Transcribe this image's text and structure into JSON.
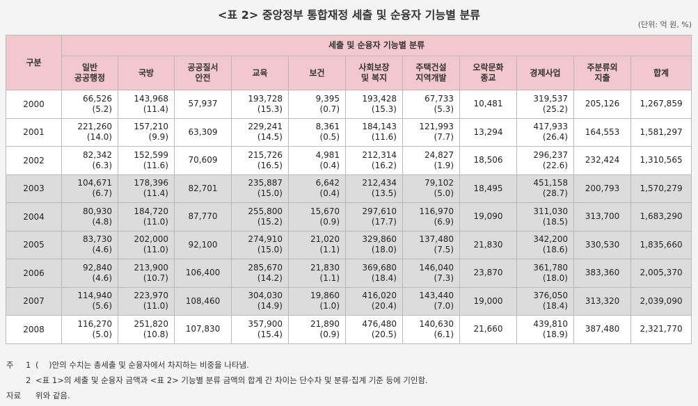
{
  "title": "<표 2> 중앙정부 통합재정 세출 및 순융자 기능별 분류",
  "unit": "(단위: 억 원, %)",
  "header": {
    "row_label": "구분",
    "group_label": "세출 및 순융자 기능별 분류",
    "columns": [
      [
        "일반",
        "공공행정"
      ],
      [
        "국방"
      ],
      [
        "공공질서",
        "안전"
      ],
      [
        "교육"
      ],
      [
        "보건"
      ],
      [
        "사회보장",
        "및 복지"
      ],
      [
        "주택건설",
        "지역개발"
      ],
      [
        "오락문화",
        "종교"
      ],
      [
        "경제사업"
      ],
      [
        "주분류외",
        "지출"
      ],
      [
        "합계"
      ]
    ]
  },
  "rows": [
    {
      "year": "2000",
      "shaded": false,
      "cells": [
        [
          "66,526",
          "(5.2)"
        ],
        [
          "143,968",
          "(11.4)"
        ],
        [
          "57,937"
        ],
        [
          "193,728",
          "(15.3)"
        ],
        [
          "9,395",
          "(0.7)"
        ],
        [
          "193,428",
          "(15.3)"
        ],
        [
          "67,733",
          "(5.3)"
        ],
        [
          "10,481"
        ],
        [
          "319,537",
          "(25.2)"
        ],
        [
          "205,126"
        ],
        [
          "1,267,859"
        ]
      ]
    },
    {
      "year": "2001",
      "shaded": false,
      "cells": [
        [
          "221,260",
          "(14.0)"
        ],
        [
          "157,210",
          "(9.9)"
        ],
        [
          "63,309"
        ],
        [
          "229,241",
          "(14.5)"
        ],
        [
          "8,361",
          "(0.5)"
        ],
        [
          "184,143",
          "(11.6)"
        ],
        [
          "121,993",
          "(7.7)"
        ],
        [
          "13,294"
        ],
        [
          "417,933",
          "(26.4)"
        ],
        [
          "164,553"
        ],
        [
          "1,581,297"
        ]
      ]
    },
    {
      "year": "2002",
      "shaded": false,
      "cells": [
        [
          "82,342",
          "(6.3)"
        ],
        [
          "152,599",
          "(11.6)"
        ],
        [
          "70,609"
        ],
        [
          "215,726",
          "(16.5)"
        ],
        [
          "4,981",
          "(0.4)"
        ],
        [
          "212,314",
          "(16.2)"
        ],
        [
          "24,827",
          "(1.9)"
        ],
        [
          "18,506"
        ],
        [
          "296,237",
          "(22.6)"
        ],
        [
          "232,424"
        ],
        [
          "1,310,565"
        ]
      ]
    },
    {
      "year": "2003",
      "shaded": true,
      "cells": [
        [
          "104,671",
          "(6.7)"
        ],
        [
          "178,396",
          "(11.4)"
        ],
        [
          "82,701"
        ],
        [
          "235,887",
          "(15.0)"
        ],
        [
          "6,642",
          "(0.4)"
        ],
        [
          "212,434",
          "(13.5)"
        ],
        [
          "79,102",
          "(5.0)"
        ],
        [
          "18,495"
        ],
        [
          "451,158",
          "(28.7)"
        ],
        [
          "200,793"
        ],
        [
          "1,570,279"
        ]
      ]
    },
    {
      "year": "2004",
      "shaded": true,
      "cells": [
        [
          "80,930",
          "(4.8)"
        ],
        [
          "184,720",
          "(11.0)"
        ],
        [
          "87,770"
        ],
        [
          "255,800",
          "(15.2)"
        ],
        [
          "15,670",
          "(0.9)"
        ],
        [
          "297,610",
          "(17.7)"
        ],
        [
          "116,970",
          "(6.9)"
        ],
        [
          "19,090"
        ],
        [
          "311,030",
          "(18.5)"
        ],
        [
          "313,700"
        ],
        [
          "1,683,290"
        ]
      ]
    },
    {
      "year": "2005",
      "shaded": true,
      "cells": [
        [
          "83,730",
          "(4.6)"
        ],
        [
          "202,000",
          "(11.0)"
        ],
        [
          "92,100"
        ],
        [
          "274,910",
          "(15.0)"
        ],
        [
          "21,020",
          "(1.1)"
        ],
        [
          "329,860",
          "(18.0)"
        ],
        [
          "137,480",
          "(7.5)"
        ],
        [
          "21,830"
        ],
        [
          "342,200",
          "(18.6)"
        ],
        [
          "330,530"
        ],
        [
          "1,835,660"
        ]
      ]
    },
    {
      "year": "2006",
      "shaded": true,
      "cells": [
        [
          "92,840",
          "(4.6)"
        ],
        [
          "213,900",
          "(10.7)"
        ],
        [
          "106,400"
        ],
        [
          "285,670",
          "(14.2)"
        ],
        [
          "21,830",
          "(1.1)"
        ],
        [
          "369,680",
          "(18.4)"
        ],
        [
          "146,040",
          "(7.3)"
        ],
        [
          "23,870"
        ],
        [
          "361,780",
          "(18.0)"
        ],
        [
          "383,360"
        ],
        [
          "2,005,370"
        ]
      ]
    },
    {
      "year": "2007",
      "shaded": true,
      "cells": [
        [
          "114,940",
          "(5.6)"
        ],
        [
          "223,970",
          "(11.0)"
        ],
        [
          "108,460"
        ],
        [
          "304,030",
          "(14.9)"
        ],
        [
          "19,860",
          "(1.0)"
        ],
        [
          "416,020",
          "(20.4)"
        ],
        [
          "143,440",
          "(7.0)"
        ],
        [
          "19,000"
        ],
        [
          "376,050",
          "(18.4)"
        ],
        [
          "313,320"
        ],
        [
          "2,039,090"
        ]
      ]
    },
    {
      "year": "2008",
      "shaded": false,
      "cells": [
        [
          "116,270",
          "(5.0)"
        ],
        [
          "251,820",
          "(10.8)"
        ],
        [
          "107,830"
        ],
        [
          "357,900",
          "(15.4)"
        ],
        [
          "21,890",
          "(0.9)"
        ],
        [
          "476,480",
          "(20.5)"
        ],
        [
          "140,630",
          "(6.1)"
        ],
        [
          "21,660"
        ],
        [
          "439,810",
          "(18.9)"
        ],
        [
          "387,480"
        ],
        [
          "2,321,770"
        ]
      ]
    }
  ],
  "notes": [
    {
      "label": "주",
      "num": "1",
      "text": "(    )안의 수치는 총세출 및 순융자에서 차지하는 비중을 나타냄."
    },
    {
      "label": "",
      "num": "2",
      "text": "<표 1>의 세출 및 순융자 금액과 <표 2> 기능별 분류 금액의 합계 간 차이는 단수차 및 분류·집계 기준 등에 기인함."
    },
    {
      "label": "자료",
      "num": "",
      "text": "위와 같음."
    }
  ]
}
